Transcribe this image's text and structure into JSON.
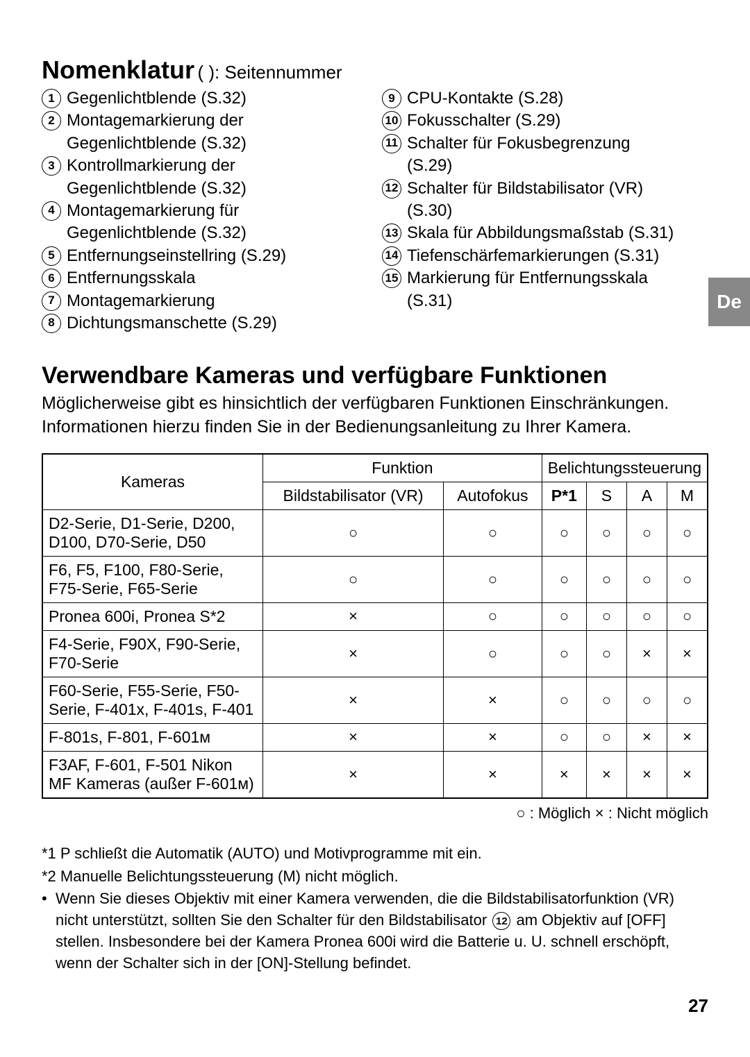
{
  "tab": "De",
  "nomenclature": {
    "title": "Nomenklatur",
    "suffix": "(  ): Seitennummer",
    "left": [
      {
        "n": "1",
        "label": "Gegenlichtblende (S.32)"
      },
      {
        "n": "2",
        "label": "Montagemarkierung der",
        "sub": "Gegenlichtblende (S.32)"
      },
      {
        "n": "3",
        "label": "Kontrollmarkierung der",
        "sub": "Gegenlichtblende (S.32)"
      },
      {
        "n": "4",
        "label": "Montagemarkierung für",
        "sub": "Gegenlichtblende (S.32)"
      },
      {
        "n": "5",
        "label": "Entfernungseinstellring (S.29)"
      },
      {
        "n": "6",
        "label": "Entfernungsskala"
      },
      {
        "n": "7",
        "label": "Montagemarkierung"
      },
      {
        "n": "8",
        "label": "Dichtungsmanschette (S.29)"
      }
    ],
    "right": [
      {
        "n": "9",
        "label": "CPU-Kontakte (S.28)"
      },
      {
        "n": "10",
        "label": "Fokusschalter (S.29)"
      },
      {
        "n": "11",
        "label": "Schalter für Fokusbegrenzung",
        "sub": "(S.29)"
      },
      {
        "n": "12",
        "label": "Schalter für Bildstabilisator (VR)",
        "sub": "(S.30)"
      },
      {
        "n": "13",
        "label": "Skala für Abbildungsmaßstab (S.31)"
      },
      {
        "n": "14",
        "label": "Tiefenschärfemarkierungen (S.31)"
      },
      {
        "n": "15",
        "label": "Markierung für Entfernungsskala",
        "sub": "(S.31)"
      }
    ]
  },
  "section2": {
    "title": "Verwendbare Kameras und verfügbare Funktionen",
    "intro": "Möglicherweise gibt es hinsichtlich der verfügbaren Funktionen Einschränkungen. Informationen hierzu finden Sie in der Bedienungsanleitung zu Ihrer Kamera."
  },
  "table": {
    "h_cameras": "Kameras",
    "h_function": "Funktion",
    "h_exposure": "Belichtungssteuerung",
    "h_vr": "Bildstabilisator (VR)",
    "h_af": "Autofokus",
    "h_p": "P*1",
    "h_s": "S",
    "h_a": "A",
    "h_m": "M",
    "rows": [
      {
        "cam": "D2-Serie, D1-Serie, D200, D100, D70-Serie, D50",
        "vr": "○",
        "af": "○",
        "p": "○",
        "s": "○",
        "a": "○",
        "m": "○"
      },
      {
        "cam": "F6, F5, F100, F80-Serie, F75-Serie, F65-Serie",
        "vr": "○",
        "af": "○",
        "p": "○",
        "s": "○",
        "a": "○",
        "m": "○"
      },
      {
        "cam": "Pronea 600i, Pronea S*2",
        "vr": "×",
        "af": "○",
        "p": "○",
        "s": "○",
        "a": "○",
        "m": "○"
      },
      {
        "cam": "F4-Serie, F90X, F90-Serie, F70-Serie",
        "vr": "×",
        "af": "○",
        "p": "○",
        "s": "○",
        "a": "×",
        "m": "×"
      },
      {
        "cam": "F60-Serie, F55-Serie, F50-Serie, F-401x, F-401s, F-401",
        "vr": "×",
        "af": "×",
        "p": "○",
        "s": "○",
        "a": "○",
        "m": "○"
      },
      {
        "cam": "F-801s, F-801, F-601ᴍ",
        "vr": "×",
        "af": "×",
        "p": "○",
        "s": "○",
        "a": "×",
        "m": "×"
      },
      {
        "cam": "F3AF, F-601, F-501 Nikon MF Kameras (außer F-601ᴍ)",
        "vr": "×",
        "af": "×",
        "p": "×",
        "s": "×",
        "a": "×",
        "m": "×"
      }
    ]
  },
  "legend": "○ : Möglich    × : Nicht möglich",
  "notes": {
    "n1": "*1 P schließt die Automatik (AUTO) und Motivprogramme mit ein.",
    "n2": "*2 Manuelle Belichtungssteuerung (M) nicht möglich.",
    "bullet_a": "Wenn Sie dieses Objektiv mit einer Kamera verwenden, die die Bildstabilisatorfunktion (VR) nicht unterstützt, sollten Sie den Schalter für den Bildstabilisator ",
    "bullet_num": "12",
    "bullet_b": " am Objektiv auf [OFF] stellen. Insbesondere bei der Kamera Pronea 600i wird die Batterie u. U. schnell erschöpft, wenn der Schalter sich in der [ON]-Stellung befindet."
  },
  "page_num": "27"
}
